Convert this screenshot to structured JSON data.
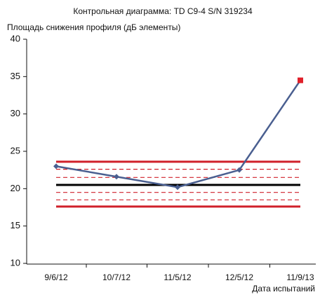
{
  "chart_data": {
    "type": "line",
    "title": "Контрольная диаграмма: TD C9-4 S/N 319234",
    "y_label": "Площадь снижения профиля (дБ элементы)",
    "x_label": "Дата испытаний",
    "categories": [
      "9/6/12",
      "10/7/12",
      "11/5/12",
      "12/5/12",
      "11/9/13"
    ],
    "values": [
      23,
      21.6,
      20.2,
      22.5,
      34.5
    ],
    "color": "#4a5f90",
    "point_colors": [
      "#4a5f90",
      "#4a5f90",
      "#4a5f90",
      "#4a5f90",
      "#e0202a"
    ],
    "reference_lines": [
      {
        "value": 23.6,
        "color": "#d0202a",
        "style": "solid"
      },
      {
        "value": 22.6,
        "color": "#d0202a",
        "style": "dashed"
      },
      {
        "value": 21.5,
        "color": "#d0202a",
        "style": "dashed"
      },
      {
        "value": 20.5,
        "color": "#000000",
        "style": "solid"
      },
      {
        "value": 19.5,
        "color": "#d0202a",
        "style": "dashed"
      },
      {
        "value": 18.5,
        "color": "#d0202a",
        "style": "dashed"
      },
      {
        "value": 17.6,
        "color": "#d0202a",
        "style": "solid"
      }
    ],
    "ylim": [
      10,
      40
    ],
    "yticks": [
      10,
      15,
      20,
      25,
      30,
      35,
      40
    ]
  }
}
